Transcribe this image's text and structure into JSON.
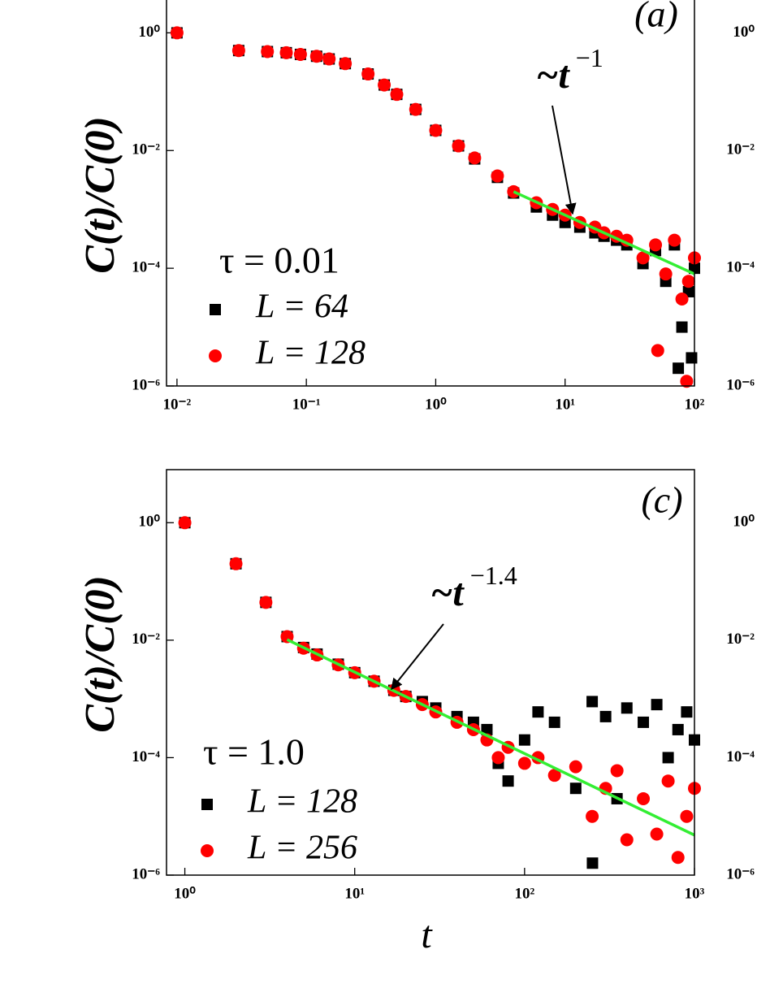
{
  "chart_data": [
    {
      "type": "scatter",
      "panel_label": "(a)",
      "y_label": "C(t)/C(0)",
      "log_x": true,
      "log_y": true,
      "xlim": [
        0.0083,
        100
      ],
      "ylim": [
        1e-06,
        8
      ],
      "xticks": [
        {
          "value": 0.01,
          "label": "10⁻²"
        },
        {
          "value": 0.1,
          "label": "10⁻¹"
        },
        {
          "value": 1,
          "label": "10⁰"
        },
        {
          "value": 10,
          "label": "10¹"
        },
        {
          "value": 100,
          "label": "10²"
        }
      ],
      "yticks": [
        {
          "value": 1e-06,
          "label": "10⁻⁶"
        },
        {
          "value": 0.0001,
          "label": "10⁻⁴"
        },
        {
          "value": 0.01,
          "label": "10⁻²"
        },
        {
          "value": 1,
          "label": "10⁰"
        }
      ],
      "legend_title": "τ = 0.01",
      "annotation": {
        "base": "~t",
        "exponent": "−1"
      },
      "fit": {
        "color": "#33ee33",
        "x": [
          4,
          100
        ],
        "values": [
          0.002,
          8e-05
        ]
      },
      "series": [
        {
          "name": "L = 64",
          "color": "#000000",
          "marker": "square",
          "x": [
            0.01,
            0.03,
            0.05,
            0.07,
            0.09,
            0.12,
            0.15,
            0.2,
            0.3,
            0.4,
            0.5,
            0.7,
            1,
            1.5,
            2,
            3,
            4,
            6,
            8,
            10,
            13,
            17,
            20,
            25,
            30,
            40,
            50,
            60,
            70,
            75,
            80,
            90,
            95,
            100
          ],
          "values": [
            1,
            0.5,
            0.48,
            0.46,
            0.43,
            0.4,
            0.36,
            0.3,
            0.2,
            0.13,
            0.09,
            0.05,
            0.022,
            0.012,
            0.0072,
            0.0035,
            0.0019,
            0.0011,
            0.0008,
            0.0006,
            0.0005,
            0.0004,
            0.00035,
            0.0003,
            0.00025,
            0.00012,
            0.0002,
            6e-05,
            0.00025,
            2e-06,
            1e-05,
            4e-05,
            3e-06,
            0.0001
          ]
        },
        {
          "name": "L = 128",
          "color": "#ff0000",
          "marker": "circle",
          "x": [
            0.01,
            0.03,
            0.05,
            0.07,
            0.09,
            0.12,
            0.15,
            0.2,
            0.3,
            0.4,
            0.5,
            0.7,
            1,
            1.5,
            2,
            3,
            4,
            6,
            8,
            10,
            13,
            17,
            20,
            25,
            30,
            40,
            50,
            52,
            60,
            70,
            80,
            87,
            90,
            100
          ],
          "values": [
            1,
            0.5,
            0.48,
            0.46,
            0.43,
            0.4,
            0.36,
            0.3,
            0.2,
            0.13,
            0.09,
            0.05,
            0.022,
            0.012,
            0.0075,
            0.0037,
            0.002,
            0.0013,
            0.001,
            0.0008,
            0.0006,
            0.0005,
            0.0004,
            0.00035,
            0.0003,
            0.00015,
            0.00025,
            4e-06,
            8e-05,
            0.0003,
            3e-05,
            1.2e-06,
            6e-05,
            0.00015
          ]
        }
      ]
    },
    {
      "type": "scatter",
      "log_y": true,
      "ylim": [
        1e-06,
        8
      ],
      "yticks": [
        {
          "value": 1e-06,
          "label": "10⁻⁶"
        },
        {
          "value": 0.0001,
          "label": "10⁻⁴"
        },
        {
          "value": 0.01,
          "label": "10⁻²"
        },
        {
          "value": 1,
          "label": "10⁰"
        }
      ]
    },
    {
      "type": "scatter",
      "panel_label": "(c)",
      "y_label": "C(t)/C(0)",
      "x_label": "t",
      "log_x": true,
      "log_y": true,
      "xlim": [
        0.78,
        1000
      ],
      "ylim": [
        1e-06,
        8
      ],
      "xticks": [
        {
          "value": 1,
          "label": "10⁰"
        },
        {
          "value": 10,
          "label": "10¹"
        },
        {
          "value": 100,
          "label": "10²"
        },
        {
          "value": 1000,
          "label": "10³"
        }
      ],
      "yticks": [
        {
          "value": 1e-06,
          "label": "10⁻⁶"
        },
        {
          "value": 0.0001,
          "label": "10⁻⁴"
        },
        {
          "value": 0.01,
          "label": "10⁻²"
        },
        {
          "value": 1,
          "label": "10⁰"
        }
      ],
      "legend_title": "τ = 1.0",
      "annotation": {
        "base": "~t",
        "exponent": "−1.4"
      },
      "fit": {
        "color": "#33ee33",
        "x": [
          4,
          1000
        ],
        "values": [
          0.0102,
          4.8e-06
        ]
      },
      "series": [
        {
          "name": "L = 128",
          "color": "#000000",
          "marker": "square",
          "x": [
            1,
            2,
            3,
            4,
            5,
            6,
            8,
            10,
            13,
            17,
            20,
            25,
            30,
            40,
            50,
            60,
            70,
            80,
            100,
            120,
            150,
            200,
            250,
            251,
            300,
            350,
            400,
            500,
            600,
            700,
            800,
            900,
            1000
          ],
          "values": [
            1,
            0.2,
            0.044,
            0.0115,
            0.0075,
            0.0058,
            0.0039,
            0.0028,
            0.002,
            0.0014,
            0.0011,
            0.0009,
            0.0007,
            0.0005,
            0.0004,
            0.0003,
            8e-05,
            4e-05,
            0.0002,
            0.0006,
            0.0004,
            3e-05,
            0.0009,
            1.6e-06,
            0.0005,
            2e-05,
            0.0007,
            0.0004,
            0.0008,
            0.0001,
            0.0003,
            0.0006,
            0.0002
          ]
        },
        {
          "name": "L = 256",
          "color": "#ff0000",
          "marker": "circle",
          "x": [
            1,
            2,
            3,
            4,
            5,
            6,
            8,
            10,
            13,
            17,
            20,
            25,
            30,
            40,
            50,
            60,
            70,
            80,
            100,
            120,
            150,
            200,
            250,
            300,
            350,
            400,
            500,
            600,
            700,
            800,
            900,
            1000
          ],
          "values": [
            1,
            0.2,
            0.044,
            0.0115,
            0.0073,
            0.0056,
            0.0038,
            0.0028,
            0.002,
            0.0014,
            0.0011,
            0.0008,
            0.0006,
            0.0004,
            0.0003,
            0.0002,
            0.0001,
            0.00015,
            8e-05,
            0.0001,
            5e-05,
            7e-05,
            1e-05,
            3e-05,
            6e-05,
            4e-06,
            2e-05,
            5e-06,
            4e-05,
            2e-06,
            1e-05,
            3e-05
          ]
        }
      ]
    },
    {
      "type": "scatter",
      "log_y": true,
      "ylim": [
        1e-06,
        8
      ],
      "yticks": [
        {
          "value": 1e-06,
          "label": "10⁻⁶"
        },
        {
          "value": 0.0001,
          "label": "10⁻⁴"
        },
        {
          "value": 0.01,
          "label": "10⁻²"
        },
        {
          "value": 1,
          "label": "10⁰"
        }
      ]
    }
  ]
}
